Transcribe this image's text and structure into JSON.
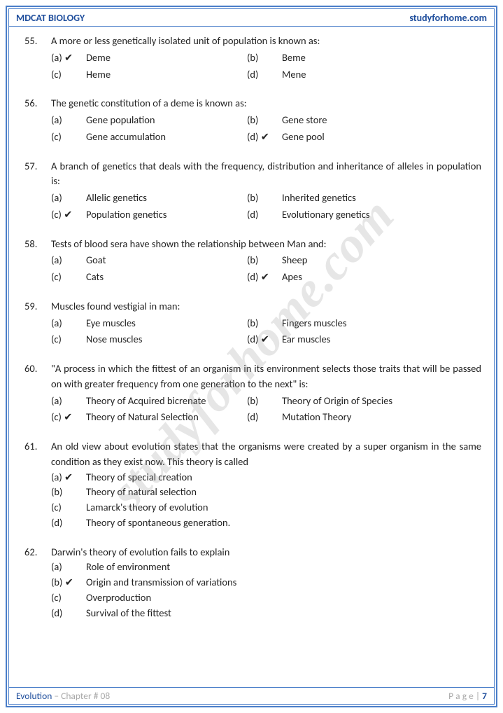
{
  "header": {
    "left": "MDCAT BIOLOGY",
    "right": "studyforhome.com"
  },
  "watermark": "studyforhome.com",
  "footer": {
    "subject": "Evolution",
    "chapter": " – Chapter # 08",
    "page_label": "P a g e  | ",
    "page_num": "7"
  },
  "questions": [
    {
      "num": "55.",
      "text": "A more or less genetically isolated unit of population is known as:",
      "layout": "two",
      "opts": [
        {
          "l": "(a) ✔",
          "t": "Deme"
        },
        {
          "l": "(b)",
          "t": "Beme"
        },
        {
          "l": "(c)",
          "t": "Heme"
        },
        {
          "l": "(d)",
          "t": "Mene"
        }
      ]
    },
    {
      "num": "56.",
      "text": "The genetic constitution of a deme is known as:",
      "layout": "two",
      "opts": [
        {
          "l": "(a)",
          "t": "Gene population"
        },
        {
          "l": "(b)",
          "t": "Gene store"
        },
        {
          "l": "(c)",
          "t": "Gene accumulation"
        },
        {
          "l": "(d) ✔",
          "t": "Gene pool"
        }
      ]
    },
    {
      "num": "57.",
      "text": "A branch of genetics that deals with the frequency, distribution and inheritance of alleles in population is:",
      "layout": "two",
      "opts": [
        {
          "l": "(a)",
          "t": "Allelic genetics"
        },
        {
          "l": "(b)",
          "t": "Inherited genetics"
        },
        {
          "l": "(c) ✔",
          "t": "Population genetics"
        },
        {
          "l": "(d)",
          "t": "Evolutionary genetics"
        }
      ]
    },
    {
      "num": "58.",
      "text": "Tests of blood sera have shown the relationship between Man and:",
      "layout": "two",
      "opts": [
        {
          "l": "(a)",
          "t": "Goat"
        },
        {
          "l": "(b)",
          "t": "Sheep"
        },
        {
          "l": "(c)",
          "t": "Cats"
        },
        {
          "l": "(d) ✔",
          "t": "Apes"
        }
      ]
    },
    {
      "num": "59.",
      "text": "Muscles found vestigial in man:",
      "layout": "two",
      "opts": [
        {
          "l": "(a)",
          "t": "Eye muscles"
        },
        {
          "l": "(b)",
          "t": "Fingers muscles"
        },
        {
          "l": "(c)",
          "t": "Nose muscles"
        },
        {
          "l": "(d) ✔",
          "t": "Ear muscles"
        }
      ]
    },
    {
      "num": "60.",
      "text": "\"A process in which the fittest of an organism in its environment selects those traits that will be passed on with greater frequency from one generation to the next\" is:",
      "layout": "two",
      "opts": [
        {
          "l": "(a)",
          "t": "Theory of Acquired bicrenate"
        },
        {
          "l": "(b)",
          "t": "Theory of Origin of Species"
        },
        {
          "l": "(c) ✔",
          "t": "Theory of Natural Selection"
        },
        {
          "l": "(d)",
          "t": "Mutation Theory"
        }
      ]
    },
    {
      "num": "61.",
      "text": "An old view about evolution states that the organisms were created by a super organism in the same condition as they exist now. This theory is called",
      "layout": "one",
      "opts": [
        {
          "l": "(a) ✔",
          "t": "Theory of special creation"
        },
        {
          "l": "(b)",
          "t": "Theory of natural selection"
        },
        {
          "l": "(c)",
          "t": "Lamarck's theory of evolution"
        },
        {
          "l": "(d)",
          "t": "Theory of spontaneous generation."
        }
      ]
    },
    {
      "num": "62.",
      "text": "Darwin's theory of evolution fails to explain",
      "layout": "one",
      "opts": [
        {
          "l": "(a)",
          "t": "Role of environment"
        },
        {
          "l": "(b) ✔",
          "t": "Origin and transmission of variations"
        },
        {
          "l": "(c)",
          "t": "Overproduction"
        },
        {
          "l": "(d)",
          "t": "Survival of the fittest"
        }
      ]
    }
  ]
}
